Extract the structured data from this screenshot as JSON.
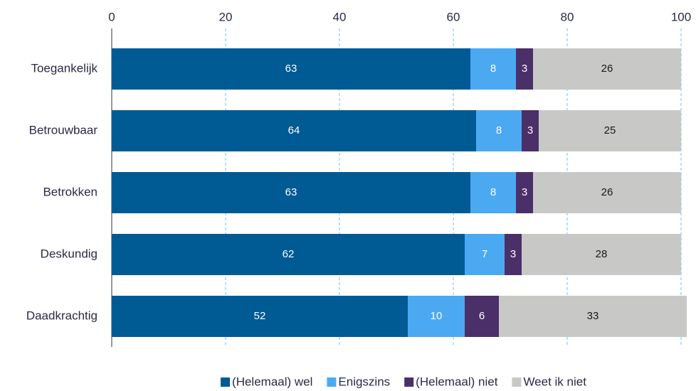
{
  "chart_data": {
    "type": "stacked_barh",
    "categories": [
      "Toegankelijk",
      "Betrouwbaar",
      "Betrokken",
      "Deskundig",
      "Daadkrachtig"
    ],
    "series": [
      {
        "name": "(Helemaal) wel",
        "color": "#005a94",
        "values": [
          63,
          64,
          63,
          62,
          52
        ]
      },
      {
        "name": "Enigszins",
        "color": "#4ba9f2",
        "values": [
          8,
          8,
          8,
          7,
          10
        ]
      },
      {
        "name": "(Helemaal) niet",
        "color": "#4b2f68",
        "values": [
          3,
          3,
          3,
          3,
          6
        ]
      },
      {
        "name": "Weet ik niet",
        "color": "#c8c8c6",
        "values": [
          26,
          25,
          26,
          28,
          33
        ]
      }
    ],
    "xlim": [
      0,
      100
    ],
    "xticks": [
      0,
      20,
      40,
      60,
      80,
      100
    ],
    "grid": true,
    "legend": "bottom"
  }
}
